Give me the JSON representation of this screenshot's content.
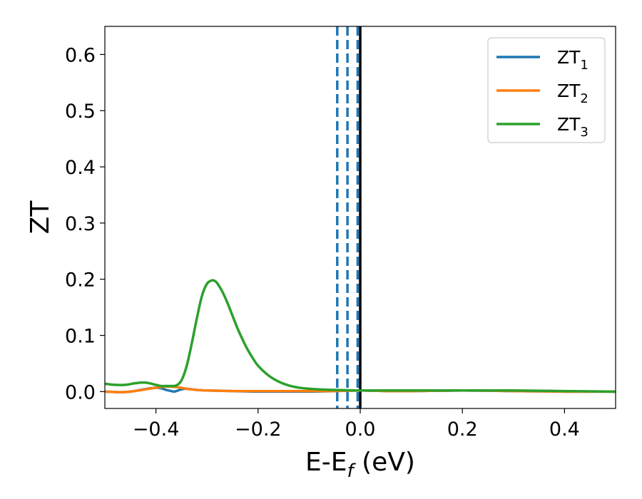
{
  "chart_data": {
    "type": "line",
    "title": "",
    "xlabel": {
      "base": "E-E",
      "sub": "f",
      "suffix": " (eV)"
    },
    "ylabel": "ZT",
    "xlim": [
      -0.5,
      0.5
    ],
    "ylim": [
      -0.03,
      0.65
    ],
    "xticks": [
      -0.4,
      -0.2,
      0.0,
      0.2,
      0.4
    ],
    "xtick_labels": [
      "−0.4",
      "−0.2",
      "0.0",
      "0.2",
      "0.4"
    ],
    "yticks": [
      0.0,
      0.1,
      0.2,
      0.3,
      0.4,
      0.5,
      0.6
    ],
    "ytick_labels": [
      "0.0",
      "0.1",
      "0.2",
      "0.3",
      "0.4",
      "0.5",
      "0.6"
    ],
    "grid": false,
    "legend_position": "top-right",
    "vlines": [
      {
        "x": -0.045,
        "style": "dashed",
        "color": "#1f77b4"
      },
      {
        "x": -0.025,
        "style": "dashed",
        "color": "#1f77b4"
      },
      {
        "x": -0.005,
        "style": "dashed",
        "color": "#1f77b4"
      },
      {
        "x": 0.0,
        "style": "solid",
        "color": "#000000"
      }
    ],
    "series": [
      {
        "name": "ZT",
        "sub": "1",
        "color": "#1f77b4",
        "x": [
          -0.5,
          -0.47,
          -0.45,
          -0.43,
          -0.41,
          -0.4,
          -0.39,
          -0.38,
          -0.37,
          -0.365,
          -0.36,
          -0.35,
          -0.34,
          -0.32,
          -0.3,
          -0.25,
          -0.2,
          -0.15,
          -0.1,
          -0.05,
          0.0,
          0.05,
          0.1,
          0.2,
          0.3,
          0.4,
          0.5
        ],
        "y": [
          0.0,
          -0.001,
          0.0,
          0.003,
          0.006,
          0.007,
          0.006,
          0.003,
          0.001,
          0.0,
          0.001,
          0.004,
          0.005,
          0.003,
          0.002,
          0.001,
          0.0,
          0.0,
          0.0,
          0.001,
          0.002,
          0.001,
          0.001,
          0.002,
          0.001,
          0.0,
          0.0
        ]
      },
      {
        "name": "ZT",
        "sub": "2",
        "color": "#ff7f0e",
        "x": [
          -0.5,
          -0.47,
          -0.45,
          -0.42,
          -0.4,
          -0.38,
          -0.36,
          -0.34,
          -0.32,
          -0.3,
          -0.25,
          -0.2,
          -0.15,
          -0.1,
          -0.05,
          0.0,
          0.05,
          0.1,
          0.2,
          0.3,
          0.4,
          0.5
        ],
        "y": [
          0.0,
          -0.001,
          0.0,
          0.004,
          0.007,
          0.009,
          0.008,
          0.005,
          0.003,
          0.002,
          0.001,
          0.001,
          0.001,
          0.001,
          0.001,
          0.002,
          0.001,
          0.001,
          0.002,
          0.001,
          0.0,
          0.0
        ]
      },
      {
        "name": "ZT",
        "sub": "3",
        "color": "#2ca02c",
        "x": [
          -0.5,
          -0.48,
          -0.46,
          -0.44,
          -0.42,
          -0.4,
          -0.39,
          -0.38,
          -0.37,
          -0.36,
          -0.35,
          -0.34,
          -0.33,
          -0.32,
          -0.31,
          -0.3,
          -0.29,
          -0.285,
          -0.28,
          -0.27,
          -0.26,
          -0.25,
          -0.24,
          -0.23,
          -0.22,
          -0.21,
          -0.2,
          -0.18,
          -0.16,
          -0.14,
          -0.12,
          -0.1,
          -0.08,
          -0.05,
          0.0,
          0.05,
          0.1,
          0.2,
          0.3,
          0.4,
          0.5
        ],
        "y": [
          0.014,
          0.012,
          0.012,
          0.015,
          0.016,
          0.012,
          0.01,
          0.01,
          0.01,
          0.011,
          0.02,
          0.045,
          0.085,
          0.13,
          0.17,
          0.192,
          0.198,
          0.197,
          0.193,
          0.178,
          0.158,
          0.135,
          0.112,
          0.092,
          0.074,
          0.059,
          0.046,
          0.029,
          0.018,
          0.011,
          0.007,
          0.005,
          0.004,
          0.003,
          0.002,
          0.002,
          0.002,
          0.002,
          0.002,
          0.001,
          0.0
        ]
      }
    ]
  }
}
